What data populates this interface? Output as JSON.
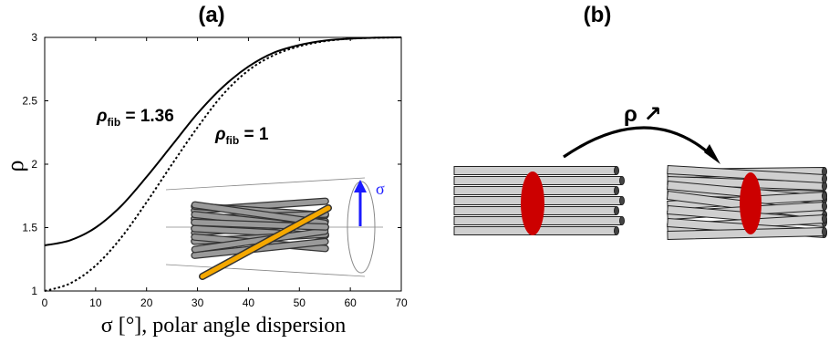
{
  "panel_a": {
    "label": "(a)",
    "chart_data": {
      "type": "line",
      "xlabel": "σ [°], polar angle dispersion",
      "ylabel": "ρ",
      "xlim": [
        0,
        70
      ],
      "ylim": [
        1,
        3
      ],
      "xticks": [
        0,
        10,
        20,
        30,
        40,
        50,
        60,
        70
      ],
      "yticks": [
        1,
        1.5,
        2,
        2.5,
        3
      ],
      "grid": false,
      "series": [
        {
          "name": "ρfib = 1.36",
          "style": "solid",
          "color": "#000000",
          "x": [
            0,
            5,
            10,
            15,
            20,
            25,
            30,
            35,
            40,
            45,
            50,
            55,
            60,
            65,
            70
          ],
          "y": [
            1.36,
            1.4,
            1.5,
            1.67,
            1.9,
            2.15,
            2.4,
            2.61,
            2.77,
            2.88,
            2.94,
            2.975,
            2.99,
            2.998,
            3.0
          ]
        },
        {
          "name": "ρfib = 1",
          "style": "dotted",
          "color": "#000000",
          "x": [
            0,
            5,
            10,
            15,
            20,
            25,
            30,
            35,
            40,
            45,
            50,
            55,
            60,
            65,
            70
          ],
          "y": [
            1.0,
            1.06,
            1.2,
            1.42,
            1.7,
            2.0,
            2.29,
            2.55,
            2.74,
            2.86,
            2.93,
            2.97,
            2.99,
            2.997,
            3.0
          ]
        }
      ]
    },
    "annotations": {
      "solid_label_main": "ρ",
      "solid_label_sub": "fib",
      "solid_label_value": " = 1.36",
      "dotted_label_main": "ρ",
      "dotted_label_sub": "fib",
      "dotted_label_value": " = 1"
    },
    "inset": {
      "sigma_label": "σ",
      "arrow_color": "#1a1aff",
      "highlight_fiber_color": "#f5a800",
      "fiber_color": "#9a9a9a"
    }
  },
  "panel_b": {
    "label": "(b)",
    "arrow_label": "ρ ↗",
    "fiber_color": "#cfcfcf",
    "ellipse_color": "#cc0000"
  }
}
